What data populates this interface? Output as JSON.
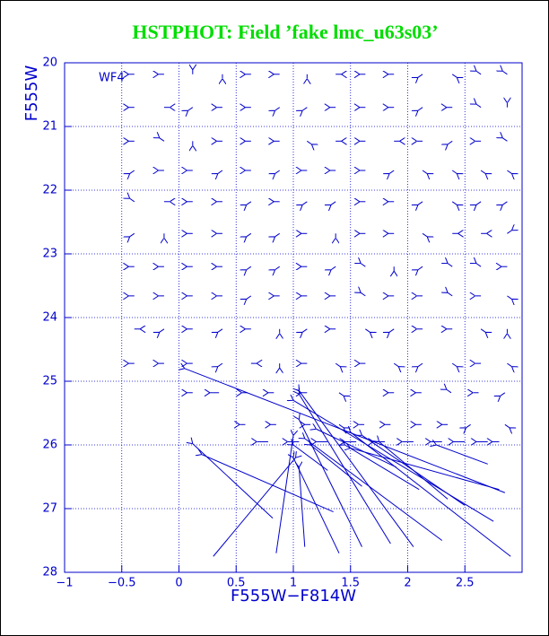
{
  "chart_data": {
    "type": "quiver",
    "title": "HSTPHOT: Field ’fake lmc_u63s03’",
    "annotation": "WF4",
    "x_label": "F555W−F814W",
    "y_label": "F555W",
    "xlim": [
      -1,
      3
    ],
    "ylim": [
      20,
      28
    ],
    "y_inverted": true,
    "grid": true,
    "color": "#0000cc",
    "title_color": "#00dd00",
    "xticks": [
      {
        "value": -1,
        "label": "−1"
      },
      {
        "value": -0.5,
        "label": "−0.5"
      },
      0,
      0.5,
      1,
      1.5,
      2,
      2.5
    ],
    "yticks": [
      20,
      21,
      22,
      23,
      24,
      25,
      26,
      27,
      28
    ],
    "arrows": [
      [
        -0.39,
        20.18,
        -0.05,
        0
      ],
      [
        -0.13,
        20.18,
        -0.05,
        0
      ],
      [
        0.12,
        20.18,
        0,
        -0.07
      ],
      [
        0.38,
        20.18,
        0,
        0.07
      ],
      [
        0.63,
        20.18,
        -0.05,
        0
      ],
      [
        0.88,
        20.18,
        -0.05,
        0
      ],
      [
        1.12,
        20.18,
        0,
        0.07
      ],
      [
        1.37,
        20.18,
        0.05,
        0
      ],
      [
        1.63,
        20.18,
        -0.05,
        0
      ],
      [
        1.88,
        20.18,
        -0.05,
        0
      ],
      [
        2.13,
        20.18,
        -0.04,
        0.05
      ],
      [
        2.39,
        20.18,
        0.04,
        0.05
      ],
      [
        2.64,
        20.18,
        -0.04,
        -0.05
      ],
      [
        2.87,
        20.18,
        -0.04,
        -0.05
      ],
      [
        -0.39,
        20.7,
        -0.05,
        0
      ],
      [
        -0.13,
        20.7,
        0.05,
        0
      ],
      [
        0.12,
        20.7,
        -0.04,
        0.05
      ],
      [
        0.38,
        20.7,
        -0.05,
        0
      ],
      [
        0.63,
        20.7,
        -0.05,
        0
      ],
      [
        0.88,
        20.7,
        -0.04,
        0.05
      ],
      [
        1.12,
        20.7,
        -0.04,
        0.05
      ],
      [
        1.37,
        20.7,
        -0.05,
        0
      ],
      [
        1.63,
        20.7,
        -0.05,
        0
      ],
      [
        1.88,
        20.7,
        -0.05,
        0
      ],
      [
        2.13,
        20.7,
        -0.04,
        0.05
      ],
      [
        2.39,
        20.7,
        -0.05,
        0
      ],
      [
        2.64,
        20.7,
        -0.04,
        -0.05
      ],
      [
        2.87,
        20.7,
        0,
        -0.07
      ],
      [
        -0.39,
        21.23,
        -0.05,
        0
      ],
      [
        -0.13,
        21.23,
        -0.04,
        -0.05
      ],
      [
        0.12,
        21.23,
        0,
        0.07
      ],
      [
        0.38,
        21.23,
        -0.05,
        0
      ],
      [
        0.63,
        21.23,
        -0.05,
        0
      ],
      [
        0.88,
        21.23,
        -0.05,
        0
      ],
      [
        1.12,
        21.23,
        0.04,
        0.05
      ],
      [
        1.37,
        21.23,
        0.05,
        0
      ],
      [
        1.63,
        21.23,
        -0.05,
        0
      ],
      [
        1.88,
        21.23,
        0.05,
        0
      ],
      [
        2.13,
        21.23,
        -0.05,
        0
      ],
      [
        2.39,
        21.23,
        -0.04,
        0.05
      ],
      [
        2.64,
        21.23,
        -0.05,
        0
      ],
      [
        2.87,
        21.23,
        -0.04,
        -0.05
      ],
      [
        -0.39,
        21.69,
        -0.04,
        0.05
      ],
      [
        -0.13,
        21.69,
        -0.05,
        0
      ],
      [
        0.12,
        21.69,
        -0.05,
        0
      ],
      [
        0.38,
        21.69,
        -0.04,
        0.05
      ],
      [
        0.63,
        21.69,
        -0.05,
        0
      ],
      [
        0.88,
        21.69,
        -0.04,
        0.05
      ],
      [
        1.12,
        21.69,
        -0.05,
        0
      ],
      [
        1.37,
        21.69,
        -0.05,
        0
      ],
      [
        1.63,
        21.69,
        -0.05,
        0
      ],
      [
        1.88,
        21.69,
        -0.04,
        0.05
      ],
      [
        2.13,
        21.69,
        0.04,
        0.05
      ],
      [
        2.39,
        21.69,
        0.04,
        0.05
      ],
      [
        2.64,
        21.69,
        0.04,
        0.05
      ],
      [
        2.87,
        21.69,
        0.04,
        0.05
      ],
      [
        -0.39,
        22.18,
        -0.04,
        -0.05
      ],
      [
        -0.13,
        22.18,
        0.05,
        0
      ],
      [
        0.12,
        22.18,
        -0.05,
        0
      ],
      [
        0.38,
        22.18,
        -0.05,
        0
      ],
      [
        0.63,
        22.18,
        -0.04,
        0.05
      ],
      [
        0.88,
        22.18,
        -0.05,
        0
      ],
      [
        1.12,
        22.18,
        -0.04,
        0.05
      ],
      [
        1.37,
        22.18,
        -0.04,
        0.05
      ],
      [
        1.63,
        22.18,
        -0.05,
        0
      ],
      [
        1.88,
        22.18,
        -0.05,
        0
      ],
      [
        2.13,
        22.18,
        -0.04,
        0.05
      ],
      [
        2.39,
        22.18,
        0.04,
        0.05
      ],
      [
        2.64,
        22.18,
        -0.04,
        0.05
      ],
      [
        2.87,
        22.18,
        -0.04,
        0.05
      ],
      [
        -0.39,
        22.68,
        -0.04,
        0.05
      ],
      [
        -0.13,
        22.68,
        0,
        0.07
      ],
      [
        0.12,
        22.68,
        -0.05,
        0
      ],
      [
        0.38,
        22.68,
        -0.05,
        0
      ],
      [
        0.63,
        22.68,
        -0.04,
        0.05
      ],
      [
        0.88,
        22.68,
        -0.04,
        0.05
      ],
      [
        1.12,
        22.68,
        -0.05,
        0
      ],
      [
        1.37,
        22.68,
        0,
        0.07
      ],
      [
        1.63,
        22.68,
        -0.05,
        0
      ],
      [
        1.88,
        22.68,
        -0.05,
        0
      ],
      [
        2.13,
        22.68,
        0.04,
        0.05
      ],
      [
        2.39,
        22.68,
        0.05,
        0
      ],
      [
        2.64,
        22.68,
        0.05,
        0
      ],
      [
        2.87,
        22.68,
        0.04,
        -0.05
      ],
      [
        -0.39,
        23.2,
        -0.05,
        0
      ],
      [
        -0.13,
        23.2,
        -0.05,
        0
      ],
      [
        0.12,
        23.2,
        -0.05,
        0
      ],
      [
        0.38,
        23.2,
        -0.05,
        0
      ],
      [
        0.63,
        23.2,
        -0.04,
        0.05
      ],
      [
        0.88,
        23.2,
        -0.04,
        0.05
      ],
      [
        1.12,
        23.2,
        -0.05,
        0
      ],
      [
        1.37,
        23.2,
        -0.04,
        0.05
      ],
      [
        1.63,
        23.2,
        -0.04,
        -0.05
      ],
      [
        1.88,
        23.2,
        0,
        0.07
      ],
      [
        2.13,
        23.2,
        -0.04,
        0.05
      ],
      [
        2.39,
        23.2,
        -0.04,
        -0.05
      ],
      [
        2.64,
        23.2,
        -0.04,
        -0.05
      ],
      [
        2.87,
        23.2,
        -0.05,
        0
      ],
      [
        -0.39,
        23.66,
        -0.05,
        0
      ],
      [
        -0.13,
        23.66,
        -0.05,
        0
      ],
      [
        0.12,
        23.66,
        -0.05,
        0
      ],
      [
        0.38,
        23.66,
        -0.05,
        0
      ],
      [
        0.63,
        23.66,
        -0.04,
        0.05
      ],
      [
        0.88,
        23.66,
        -0.05,
        0
      ],
      [
        1.12,
        23.66,
        -0.05,
        0
      ],
      [
        1.37,
        23.66,
        -0.05,
        0
      ],
      [
        1.63,
        23.66,
        -0.04,
        -0.05
      ],
      [
        1.88,
        23.66,
        -0.05,
        0
      ],
      [
        2.13,
        23.66,
        -0.05,
        0
      ],
      [
        2.39,
        23.66,
        -0.04,
        -0.05
      ],
      [
        2.64,
        23.66,
        -0.05,
        0
      ],
      [
        2.87,
        23.66,
        0.04,
        0.05
      ],
      [
        -0.39,
        24.18,
        0.05,
        0
      ],
      [
        -0.13,
        24.18,
        -0.04,
        0.05
      ],
      [
        0.12,
        24.18,
        -0.05,
        0
      ],
      [
        0.38,
        24.18,
        -0.04,
        0.05
      ],
      [
        0.63,
        24.18,
        -0.05,
        0
      ],
      [
        0.88,
        24.18,
        0,
        0.07
      ],
      [
        1.12,
        24.18,
        -0.04,
        0.05
      ],
      [
        1.37,
        24.18,
        -0.05,
        0
      ],
      [
        1.63,
        24.18,
        0.04,
        0.05
      ],
      [
        1.88,
        24.18,
        -0.04,
        0.05
      ],
      [
        2.13,
        24.18,
        -0.05,
        0
      ],
      [
        2.39,
        24.18,
        -0.05,
        0
      ],
      [
        2.64,
        24.18,
        0.04,
        0.05
      ],
      [
        2.87,
        24.18,
        0,
        0.07
      ],
      [
        -0.39,
        24.72,
        -0.05,
        0
      ],
      [
        -0.13,
        24.72,
        -0.05,
        0
      ],
      [
        0.12,
        24.72,
        -0.05,
        0
      ],
      [
        0.38,
        24.72,
        -0.04,
        0.05
      ],
      [
        0.63,
        24.72,
        0.05,
        0
      ],
      [
        0.88,
        24.72,
        0,
        0.07
      ],
      [
        1.12,
        24.72,
        -0.05,
        0
      ],
      [
        1.37,
        24.72,
        0.04,
        0.05
      ],
      [
        1.63,
        24.72,
        -0.05,
        0
      ],
      [
        1.88,
        24.72,
        0.04,
        0.05
      ],
      [
        2.13,
        24.72,
        -0.04,
        0.05
      ],
      [
        2.39,
        24.72,
        0.04,
        0.05
      ],
      [
        2.64,
        24.72,
        -0.05,
        0
      ],
      [
        2.87,
        24.72,
        0.04,
        0.05
      ],
      [
        0.12,
        25.18,
        -0.05,
        0
      ],
      [
        0.35,
        25.18,
        -0.08,
        0
      ],
      [
        0.6,
        25.18,
        -0.05,
        0
      ],
      [
        0.83,
        25.18,
        -0.05,
        0
      ],
      [
        1.12,
        25.18,
        -0.05,
        0
      ],
      [
        1.4,
        25.18,
        0.04,
        0.05
      ],
      [
        1.88,
        25.18,
        -0.05,
        0
      ],
      [
        2.12,
        25.18,
        -0.05,
        0
      ],
      [
        2.38,
        25.18,
        -0.04,
        -0.05
      ],
      [
        2.62,
        25.18,
        -0.05,
        0
      ],
      [
        2.85,
        25.18,
        -0.04,
        0.05
      ],
      [
        0.58,
        25.68,
        -0.05,
        0
      ],
      [
        0.85,
        25.68,
        -0.05,
        0
      ],
      [
        1.15,
        25.68,
        -0.05,
        0
      ],
      [
        1.4,
        25.68,
        0.04,
        0.05
      ],
      [
        1.62,
        25.68,
        -0.05,
        0
      ],
      [
        1.85,
        25.68,
        -0.05,
        0
      ],
      [
        2.12,
        25.68,
        -0.05,
        0
      ],
      [
        2.35,
        25.68,
        -0.05,
        0
      ],
      [
        2.55,
        25.68,
        -0.04,
        0.05
      ],
      [
        2.85,
        25.68,
        0.04,
        0.05
      ],
      [
        0.78,
        25.95,
        -0.1,
        0
      ],
      [
        1.05,
        25.95,
        -0.1,
        0
      ],
      [
        1.3,
        25.95,
        -0.1,
        0
      ],
      [
        1.55,
        25.95,
        -0.1,
        0
      ],
      [
        1.8,
        25.95,
        -0.1,
        0
      ],
      [
        2.05,
        25.95,
        -0.1,
        0
      ],
      [
        2.3,
        25.95,
        -0.1,
        0
      ],
      [
        2.5,
        25.95,
        -0.1,
        0
      ],
      [
        2.7,
        25.95,
        -0.1,
        0
      ],
      [
        2.8,
        25.95,
        -0.06,
        0
      ],
      [
        2.85,
        26.75,
        -2.8,
        -1.95
      ],
      [
        0.3,
        27.75,
        0.72,
        -1.55
      ],
      [
        0.85,
        27.7,
        0.15,
        -1.85
      ],
      [
        1.1,
        27.6,
        -0.05,
        -1.25
      ],
      [
        0.82,
        27.15,
        -0.7,
        -1.17
      ],
      [
        1.35,
        27.05,
        -1.15,
        -0.9
      ],
      [
        1.4,
        27.7,
        -0.4,
        -1.5
      ],
      [
        1.6,
        27.6,
        -0.55,
        -2.0
      ],
      [
        1.85,
        27.55,
        -0.8,
        -2.35
      ],
      [
        2.05,
        27.6,
        -1.0,
        -2.45
      ],
      [
        2.3,
        27.5,
        -1.2,
        -1.6
      ],
      [
        2.75,
        27.2,
        -1.75,
        -1.9
      ],
      [
        2.9,
        27.75,
        -1.4,
        -1.95
      ],
      [
        2.8,
        26.7,
        -1.3,
        -0.65
      ],
      [
        2.5,
        26.95,
        -0.9,
        -1.1
      ],
      [
        2.35,
        26.85,
        -0.6,
        -0.9
      ],
      [
        1.6,
        26.65,
        -0.45,
        -0.65
      ],
      [
        2.7,
        26.3,
        -0.45,
        -0.3
      ],
      [
        1.9,
        26.35,
        -0.7,
        -0.6
      ],
      [
        1.3,
        26.4,
        -0.3,
        -0.4
      ],
      [
        2.1,
        26.7,
        -0.65,
        -0.7
      ]
    ]
  }
}
